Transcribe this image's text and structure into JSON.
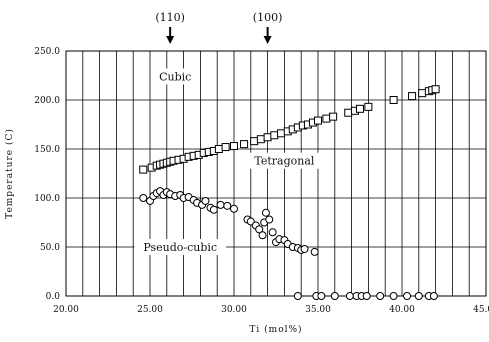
{
  "chart_data": {
    "type": "scatter",
    "title": "",
    "xlabel": "Ti (mol%)",
    "ylabel": "Temperature (C)",
    "xlim": [
      20.0,
      45.0
    ],
    "ylim": [
      0.0,
      250.0
    ],
    "x_ticks": [
      "20.00",
      "25.00",
      "30.00",
      "35.00",
      "40.00",
      "45.00"
    ],
    "y_ticks": [
      "0.0",
      "50.0",
      "100.0",
      "150.0",
      "200.0",
      "250.0"
    ],
    "grid": true,
    "annotations": [
      {
        "text": "(110)",
        "x": 26.2
      },
      {
        "text": "(100)",
        "x": 32.0
      }
    ],
    "region_labels": [
      "Cubic",
      "Tetragonal",
      "Pseudo-cubic"
    ],
    "series": [
      {
        "marker": "square",
        "points": [
          [
            24.6,
            129
          ],
          [
            25.1,
            131
          ],
          [
            25.4,
            133
          ],
          [
            25.6,
            134
          ],
          [
            25.8,
            135
          ],
          [
            26.0,
            136
          ],
          [
            26.2,
            137
          ],
          [
            26.4,
            138
          ],
          [
            26.7,
            139
          ],
          [
            27.0,
            140
          ],
          [
            27.3,
            142
          ],
          [
            27.6,
            143
          ],
          [
            27.9,
            144
          ],
          [
            28.2,
            146
          ],
          [
            28.5,
            147
          ],
          [
            28.8,
            148
          ],
          [
            29.1,
            150
          ],
          [
            29.5,
            152
          ],
          [
            30.0,
            153
          ],
          [
            30.6,
            155
          ],
          [
            31.2,
            158
          ],
          [
            31.6,
            160
          ],
          [
            32.0,
            162
          ],
          [
            32.4,
            164
          ],
          [
            32.8,
            166
          ],
          [
            33.2,
            168
          ],
          [
            33.5,
            170
          ],
          [
            33.8,
            172
          ],
          [
            34.1,
            174
          ],
          [
            34.4,
            175
          ],
          [
            34.7,
            177
          ],
          [
            35.0,
            179
          ],
          [
            35.5,
            181
          ],
          [
            35.9,
            183
          ],
          [
            36.8,
            187
          ],
          [
            37.2,
            189
          ],
          [
            37.5,
            191
          ],
          [
            38.0,
            193
          ],
          [
            39.5,
            200
          ],
          [
            40.6,
            204
          ],
          [
            41.2,
            207
          ],
          [
            41.6,
            209
          ],
          [
            41.8,
            210
          ],
          [
            42.0,
            211
          ]
        ]
      },
      {
        "marker": "circle",
        "points": [
          [
            24.6,
            100
          ],
          [
            25.0,
            97
          ],
          [
            25.2,
            102
          ],
          [
            25.4,
            105
          ],
          [
            25.6,
            107
          ],
          [
            25.8,
            103
          ],
          [
            26.0,
            106
          ],
          [
            26.2,
            104
          ],
          [
            26.5,
            102
          ],
          [
            26.8,
            103
          ],
          [
            27.0,
            100
          ],
          [
            27.3,
            101
          ],
          [
            27.6,
            98
          ],
          [
            27.8,
            95
          ],
          [
            28.1,
            93
          ],
          [
            28.3,
            97
          ],
          [
            28.6,
            90
          ],
          [
            28.8,
            88
          ],
          [
            29.2,
            93
          ],
          [
            29.6,
            92
          ],
          [
            30.0,
            89
          ],
          [
            30.8,
            78
          ],
          [
            31.0,
            76
          ],
          [
            31.3,
            72
          ],
          [
            31.5,
            68
          ],
          [
            31.8,
            75
          ],
          [
            31.7,
            62
          ],
          [
            31.9,
            85
          ],
          [
            32.1,
            78
          ],
          [
            32.3,
            65
          ],
          [
            32.5,
            55
          ],
          [
            32.7,
            58
          ],
          [
            33.0,
            57
          ],
          [
            33.2,
            53
          ],
          [
            33.5,
            50
          ],
          [
            33.8,
            49
          ],
          [
            34.0,
            47
          ],
          [
            34.2,
            48
          ],
          [
            34.8,
            45
          ],
          [
            33.8,
            0
          ],
          [
            34.9,
            0
          ],
          [
            35.2,
            0
          ],
          [
            36.0,
            0
          ],
          [
            36.9,
            0
          ],
          [
            37.3,
            0
          ],
          [
            37.6,
            0
          ],
          [
            37.9,
            0
          ],
          [
            38.7,
            0
          ],
          [
            39.5,
            0
          ],
          [
            40.3,
            0
          ],
          [
            41.0,
            0
          ],
          [
            41.6,
            0
          ],
          [
            41.9,
            0
          ]
        ]
      }
    ]
  }
}
